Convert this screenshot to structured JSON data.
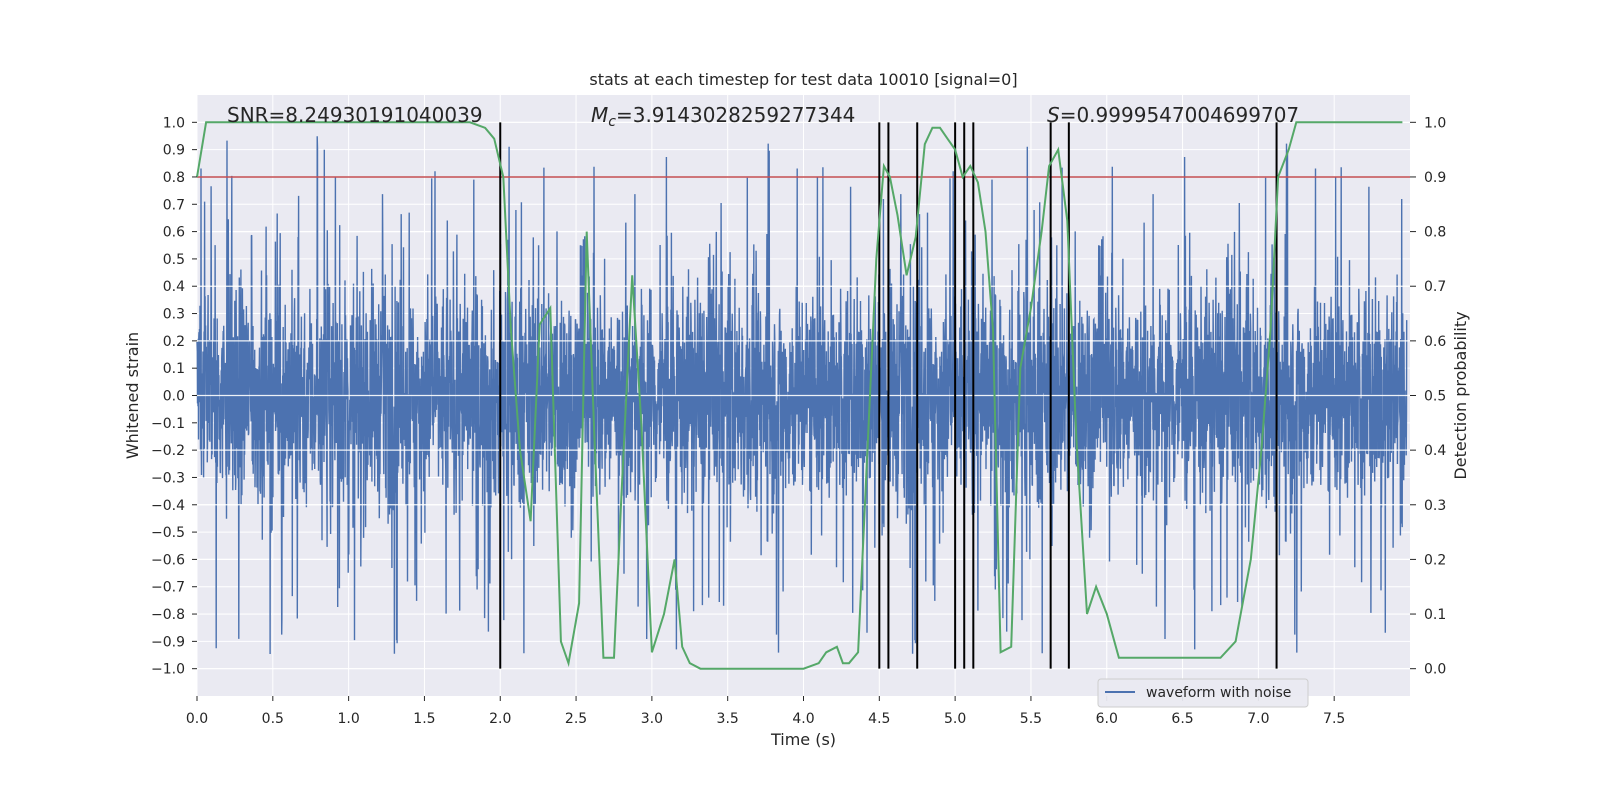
{
  "chart_data": {
    "type": "line",
    "title": "stats at each timestep for test data 10010 [signal=0]",
    "xlabel": "Time (s)",
    "ylabel_left": "Whitened strain",
    "ylabel_right": "Detection probability",
    "xlim": [
      0,
      8
    ],
    "ylim_left": [
      -1.1,
      1.1
    ],
    "ylim_right": [
      -0.05,
      1.05
    ],
    "x_ticks": [
      0.0,
      0.5,
      1.0,
      1.5,
      2.0,
      2.5,
      3.0,
      3.5,
      4.0,
      4.5,
      5.0,
      5.5,
      6.0,
      6.5,
      7.0,
      7.5
    ],
    "x_tick_labels": [
      "0.0",
      "0.5",
      "1.0",
      "1.5",
      "2.0",
      "2.5",
      "3.0",
      "3.5",
      "4.0",
      "4.5",
      "5.0",
      "5.5",
      "6.0",
      "6.5",
      "7.0",
      "7.5"
    ],
    "y_ticks_left": [
      -1.0,
      -0.9,
      -0.8,
      -0.7,
      -0.6,
      -0.5,
      -0.4,
      -0.3,
      -0.2,
      -0.1,
      0.0,
      0.1,
      0.2,
      0.3,
      0.4,
      0.5,
      0.6,
      0.7,
      0.8,
      0.9,
      1.0
    ],
    "y_tick_labels_left": [
      "−1.0",
      "−0.9",
      "−0.8",
      "−0.7",
      "−0.6",
      "−0.5",
      "−0.4",
      "−0.3",
      "−0.2",
      "−0.1",
      "0.0",
      "0.1",
      "0.2",
      "0.3",
      "0.4",
      "0.5",
      "0.6",
      "0.7",
      "0.8",
      "0.9",
      "1.0"
    ],
    "y_ticks_right": [
      0.0,
      0.1,
      0.2,
      0.3,
      0.4,
      0.5,
      0.6,
      0.7,
      0.8,
      0.9,
      1.0
    ],
    "y_tick_labels_right": [
      "0.0",
      "0.1",
      "0.2",
      "0.3",
      "0.4",
      "0.5",
      "0.6",
      "0.7",
      "0.8",
      "0.9",
      "1.0"
    ],
    "annotations": {
      "snr": "SNR=8.24930191040039",
      "mc_prefix": "M",
      "mc_sub": "c",
      "mc_value": "=3.9143028259277344",
      "s_prefix": "S",
      "s_value": "=0.9999547004699707"
    },
    "threshold": {
      "value": 0.9,
      "axis": "right",
      "color": "#c44e52"
    },
    "event_lines": [
      2.0,
      4.5,
      4.56,
      4.75,
      5.0,
      5.06,
      5.12,
      5.63,
      5.75,
      7.12
    ],
    "waveform": {
      "name": "waveform with noise",
      "color": "#4c72b0",
      "description": "dense whitened noise, core band roughly ±0.4 with spikes up to ±0.95"
    },
    "probability": {
      "color": "#55a868",
      "x": [
        0.0,
        0.06,
        0.12,
        0.2,
        0.4,
        0.6,
        0.8,
        1.0,
        1.2,
        1.4,
        1.6,
        1.8,
        1.9,
        1.96,
        2.02,
        2.07,
        2.13,
        2.2,
        2.26,
        2.33,
        2.4,
        2.45,
        2.52,
        2.57,
        2.62,
        2.68,
        2.75,
        2.8,
        2.87,
        2.93,
        3.0,
        3.08,
        3.15,
        3.2,
        3.25,
        3.32,
        3.4,
        3.5,
        3.6,
        3.7,
        3.8,
        3.9,
        4.0,
        4.1,
        4.15,
        4.22,
        4.26,
        4.3,
        4.36,
        4.43,
        4.48,
        4.53,
        4.57,
        4.62,
        4.68,
        4.74,
        4.8,
        4.85,
        4.9,
        4.95,
        5.0,
        5.05,
        5.1,
        5.15,
        5.2,
        5.25,
        5.3,
        5.37,
        5.43,
        5.5,
        5.57,
        5.62,
        5.68,
        5.74,
        5.8,
        5.87,
        5.93,
        6.0,
        6.08,
        6.15,
        6.25,
        6.35,
        6.45,
        6.55,
        6.65,
        6.75,
        6.85,
        6.95,
        7.02,
        7.08,
        7.13,
        7.2,
        7.25,
        7.3,
        7.5,
        7.7,
        7.95
      ],
      "y": [
        0.9,
        1.0,
        1.0,
        1.0,
        1.0,
        1.0,
        1.0,
        1.0,
        1.0,
        1.0,
        1.0,
        1.0,
        0.99,
        0.97,
        0.9,
        0.62,
        0.4,
        0.27,
        0.63,
        0.66,
        0.05,
        0.01,
        0.12,
        0.8,
        0.43,
        0.02,
        0.02,
        0.32,
        0.72,
        0.45,
        0.03,
        0.1,
        0.2,
        0.04,
        0.01,
        0.0,
        0.0,
        0.0,
        0.0,
        0.0,
        0.0,
        0.0,
        0.0,
        0.01,
        0.03,
        0.04,
        0.01,
        0.01,
        0.03,
        0.45,
        0.75,
        0.92,
        0.9,
        0.83,
        0.72,
        0.79,
        0.96,
        0.99,
        0.99,
        0.97,
        0.95,
        0.9,
        0.92,
        0.89,
        0.8,
        0.62,
        0.03,
        0.04,
        0.55,
        0.66,
        0.8,
        0.92,
        0.95,
        0.82,
        0.42,
        0.1,
        0.15,
        0.1,
        0.02,
        0.02,
        0.02,
        0.02,
        0.02,
        0.02,
        0.02,
        0.02,
        0.05,
        0.2,
        0.4,
        0.62,
        0.9,
        0.95,
        1.0,
        1.0,
        1.0,
        1.0,
        1.0
      ]
    },
    "legend": {
      "entries": [
        "waveform with noise"
      ],
      "location": "bottom-right"
    },
    "grid": true,
    "background": "#eaeaf2",
    "grid_color": "#ffffff"
  }
}
